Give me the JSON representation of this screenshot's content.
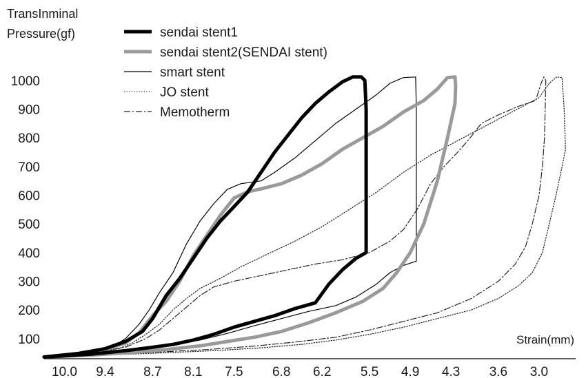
{
  "chart_data": {
    "type": "line",
    "ylabel_lines": [
      "TransInminal",
      "Pressure(gf)"
    ],
    "xlabel": "Strain(mm)",
    "x_ticks": [
      "10.0",
      "9.4",
      "8.7",
      "8.1",
      "7.5",
      "6.8",
      "6.2",
      "5.5",
      "4.9",
      "4.3",
      "3.6",
      "3.0"
    ],
    "y_ticks": [
      100,
      200,
      300,
      400,
      500,
      600,
      700,
      800,
      900,
      1000
    ],
    "xlim": [
      10.3,
      2.45
    ],
    "ylim": [
      30,
      1050
    ],
    "x_reversed": true,
    "grid": false,
    "legend_position": "top-center",
    "series": [
      {
        "name": "sendai stent1",
        "color": "#000000",
        "style": "thick-solid",
        "points": [
          [
            10.3,
            36
          ],
          [
            9.8,
            48
          ],
          [
            9.4,
            65
          ],
          [
            9.1,
            90
          ],
          [
            8.85,
            125
          ],
          [
            8.7,
            170
          ],
          [
            8.5,
            250
          ],
          [
            8.3,
            310
          ],
          [
            8.1,
            380
          ],
          [
            7.9,
            450
          ],
          [
            7.7,
            510
          ],
          [
            7.5,
            560
          ],
          [
            7.3,
            610
          ],
          [
            7.1,
            680
          ],
          [
            6.9,
            750
          ],
          [
            6.7,
            810
          ],
          [
            6.5,
            870
          ],
          [
            6.3,
            920
          ],
          [
            6.1,
            960
          ],
          [
            5.9,
            995
          ],
          [
            5.75,
            1012
          ],
          [
            5.62,
            1012
          ],
          [
            5.57,
            1000
          ],
          [
            5.55,
            900
          ],
          [
            5.55,
            700
          ],
          [
            5.55,
            500
          ],
          [
            5.55,
            400
          ],
          [
            5.7,
            380
          ],
          [
            5.9,
            340
          ],
          [
            6.1,
            290
          ],
          [
            6.3,
            225
          ],
          [
            6.6,
            205
          ],
          [
            6.9,
            180
          ],
          [
            7.2,
            160
          ],
          [
            7.5,
            140
          ],
          [
            7.8,
            115
          ],
          [
            8.1,
            95
          ],
          [
            8.4,
            80
          ],
          [
            8.7,
            70
          ],
          [
            9.1,
            58
          ],
          [
            9.6,
            46
          ],
          [
            10.3,
            36
          ]
        ]
      },
      {
        "name": "sendai stent2(SENDAI stent)",
        "color": "#9a9a9a",
        "style": "thick-solid",
        "points": [
          [
            10.3,
            36
          ],
          [
            9.8,
            48
          ],
          [
            9.4,
            62
          ],
          [
            9.1,
            85
          ],
          [
            8.9,
            120
          ],
          [
            8.7,
            180
          ],
          [
            8.5,
            230
          ],
          [
            8.3,
            300
          ],
          [
            8.1,
            390
          ],
          [
            7.9,
            460
          ],
          [
            7.7,
            530
          ],
          [
            7.5,
            590
          ],
          [
            7.3,
            612
          ],
          [
            7.1,
            622
          ],
          [
            6.8,
            640
          ],
          [
            6.5,
            670
          ],
          [
            6.2,
            710
          ],
          [
            5.9,
            760
          ],
          [
            5.6,
            800
          ],
          [
            5.3,
            840
          ],
          [
            5.0,
            890
          ],
          [
            4.7,
            930
          ],
          [
            4.5,
            970
          ],
          [
            4.35,
            1010
          ],
          [
            4.24,
            1012
          ],
          [
            4.23,
            980
          ],
          [
            4.24,
            920
          ],
          [
            4.35,
            800
          ],
          [
            4.5,
            650
          ],
          [
            4.7,
            500
          ],
          [
            4.9,
            400
          ],
          [
            5.1,
            330
          ],
          [
            5.3,
            275
          ],
          [
            5.6,
            230
          ],
          [
            6.0,
            190
          ],
          [
            6.4,
            155
          ],
          [
            6.8,
            125
          ],
          [
            7.2,
            105
          ],
          [
            7.6,
            90
          ],
          [
            8.0,
            75
          ],
          [
            8.5,
            62
          ],
          [
            9.0,
            52
          ],
          [
            9.6,
            43
          ],
          [
            10.3,
            36
          ]
        ]
      },
      {
        "name": "smart stent",
        "color": "#000000",
        "style": "thin-solid",
        "points": [
          [
            10.3,
            36
          ],
          [
            9.7,
            50
          ],
          [
            9.3,
            70
          ],
          [
            9.1,
            100
          ],
          [
            8.9,
            150
          ],
          [
            8.75,
            200
          ],
          [
            8.6,
            260
          ],
          [
            8.4,
            330
          ],
          [
            8.2,
            430
          ],
          [
            8.0,
            510
          ],
          [
            7.8,
            570
          ],
          [
            7.6,
            620
          ],
          [
            7.4,
            640
          ],
          [
            7.1,
            650
          ],
          [
            6.9,
            680
          ],
          [
            6.6,
            730
          ],
          [
            6.3,
            790
          ],
          [
            6.0,
            850
          ],
          [
            5.7,
            900
          ],
          [
            5.4,
            950
          ],
          [
            5.2,
            990
          ],
          [
            5.0,
            1010
          ],
          [
            4.82,
            1012
          ],
          [
            4.81,
            900
          ],
          [
            4.81,
            700
          ],
          [
            4.81,
            500
          ],
          [
            4.81,
            370
          ],
          [
            5.0,
            355
          ],
          [
            5.2,
            330
          ],
          [
            5.4,
            290
          ],
          [
            5.7,
            245
          ],
          [
            6.0,
            215
          ],
          [
            6.4,
            195
          ],
          [
            6.8,
            170
          ],
          [
            7.2,
            145
          ],
          [
            7.6,
            118
          ],
          [
            8.0,
            95
          ],
          [
            8.4,
            80
          ],
          [
            8.8,
            66
          ],
          [
            9.3,
            54
          ],
          [
            9.8,
            44
          ],
          [
            10.3,
            36
          ]
        ]
      },
      {
        "name": "JO stent",
        "color": "#222222",
        "style": "dotted",
        "points": [
          [
            10.3,
            36
          ],
          [
            9.6,
            50
          ],
          [
            9.2,
            65
          ],
          [
            9.0,
            85
          ],
          [
            8.8,
            115
          ],
          [
            8.6,
            150
          ],
          [
            8.4,
            200
          ],
          [
            8.2,
            240
          ],
          [
            8.0,
            275
          ],
          [
            7.7,
            310
          ],
          [
            7.4,
            350
          ],
          [
            7.0,
            395
          ],
          [
            6.6,
            440
          ],
          [
            6.2,
            490
          ],
          [
            5.8,
            550
          ],
          [
            5.4,
            610
          ],
          [
            5.0,
            680
          ],
          [
            4.6,
            740
          ],
          [
            4.2,
            790
          ],
          [
            3.8,
            840
          ],
          [
            3.4,
            890
          ],
          [
            3.0,
            940
          ],
          [
            2.85,
            990
          ],
          [
            2.74,
            1012
          ],
          [
            2.66,
            1010
          ],
          [
            2.63,
            900
          ],
          [
            2.61,
            760
          ],
          [
            2.66,
            700
          ],
          [
            2.75,
            600
          ],
          [
            2.85,
            500
          ],
          [
            2.95,
            400
          ],
          [
            3.1,
            330
          ],
          [
            3.3,
            285
          ],
          [
            3.6,
            240
          ],
          [
            4.0,
            200
          ],
          [
            4.5,
            170
          ],
          [
            5.0,
            140
          ],
          [
            5.5,
            115
          ],
          [
            6.0,
            95
          ],
          [
            6.5,
            80
          ],
          [
            7.1,
            68
          ],
          [
            7.8,
            58
          ],
          [
            8.6,
            50
          ],
          [
            9.5,
            42
          ],
          [
            10.3,
            36
          ]
        ]
      },
      {
        "name": "Memotherm",
        "color": "#222222",
        "style": "dash-dot",
        "points": [
          [
            10.3,
            36
          ],
          [
            9.6,
            50
          ],
          [
            9.1,
            70
          ],
          [
            8.8,
            100
          ],
          [
            8.6,
            130
          ],
          [
            8.4,
            170
          ],
          [
            8.2,
            210
          ],
          [
            8.0,
            250
          ],
          [
            7.8,
            280
          ],
          [
            7.5,
            300
          ],
          [
            7.1,
            320
          ],
          [
            6.7,
            340
          ],
          [
            6.3,
            360
          ],
          [
            5.9,
            375
          ],
          [
            5.5,
            400
          ],
          [
            5.2,
            440
          ],
          [
            5.0,
            480
          ],
          [
            4.8,
            550
          ],
          [
            4.6,
            640
          ],
          [
            4.4,
            700
          ],
          [
            4.2,
            750
          ],
          [
            4.05,
            790
          ],
          [
            3.85,
            850
          ],
          [
            3.6,
            880
          ],
          [
            3.3,
            910
          ],
          [
            3.05,
            930
          ],
          [
            2.97,
            990
          ],
          [
            2.93,
            1012
          ],
          [
            2.9,
            1000
          ],
          [
            2.91,
            900
          ],
          [
            2.92,
            800
          ],
          [
            2.95,
            700
          ],
          [
            3.0,
            600
          ],
          [
            3.1,
            500
          ],
          [
            3.2,
            420
          ],
          [
            3.35,
            360
          ],
          [
            3.6,
            300
          ],
          [
            4.0,
            240
          ],
          [
            4.5,
            190
          ],
          [
            5.0,
            160
          ],
          [
            5.5,
            130
          ],
          [
            6.0,
            105
          ],
          [
            6.6,
            88
          ],
          [
            7.2,
            74
          ],
          [
            7.9,
            62
          ],
          [
            8.7,
            52
          ],
          [
            9.5,
            43
          ],
          [
            10.3,
            36
          ]
        ]
      }
    ]
  }
}
